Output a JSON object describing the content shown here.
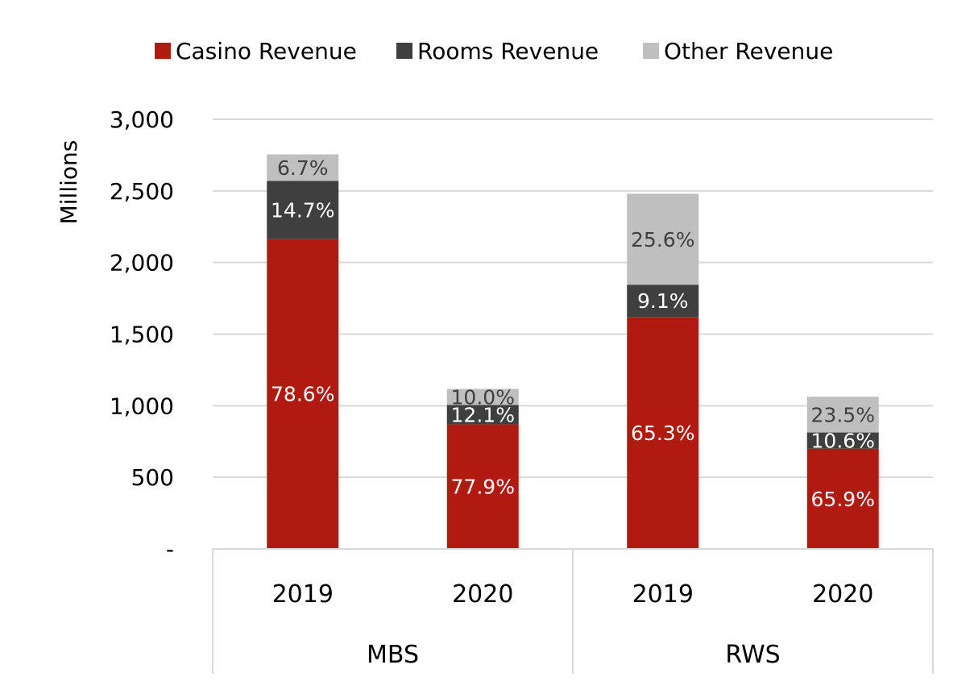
{
  "chart_data": {
    "type": "bar",
    "stacked": true,
    "ylabel": "Millions",
    "ylim": [
      0,
      3000
    ],
    "y_ticks": [
      0,
      500,
      1000,
      1500,
      2000,
      2500,
      3000
    ],
    "y_tick_labels": [
      "-",
      "500",
      "1,000",
      "1,500",
      "2,000",
      "2,500",
      "3,000"
    ],
    "grid": true,
    "legend_position": "top",
    "groups": [
      {
        "name": "MBS",
        "categories": [
          "2019",
          "2020"
        ]
      },
      {
        "name": "RWS",
        "categories": [
          "2019",
          "2020"
        ]
      }
    ],
    "categories": [
      "MBS 2019",
      "MBS 2020",
      "RWS 2019",
      "RWS 2020"
    ],
    "series": [
      {
        "name": "Casino Revenue",
        "color": "#B01A10",
        "label_color": "#ffffff",
        "values": [
          2165,
          870,
          1620,
          700
        ],
        "labels": [
          "78.6%",
          "77.9%",
          "65.3%",
          "65.9%"
        ]
      },
      {
        "name": "Rooms Revenue",
        "color": "#3F3F3F",
        "label_color": "#ffffff",
        "values": [
          405,
          135,
          225,
          113
        ],
        "labels": [
          "14.7%",
          "12.1%",
          "9.1%",
          "10.6%"
        ]
      },
      {
        "name": "Other Revenue",
        "color": "#BFBFBF",
        "label_color": "#404040",
        "values": [
          185,
          112,
          635,
          250
        ],
        "labels": [
          "6.7%",
          "10.0%",
          "25.6%",
          "23.5%"
        ]
      }
    ]
  }
}
